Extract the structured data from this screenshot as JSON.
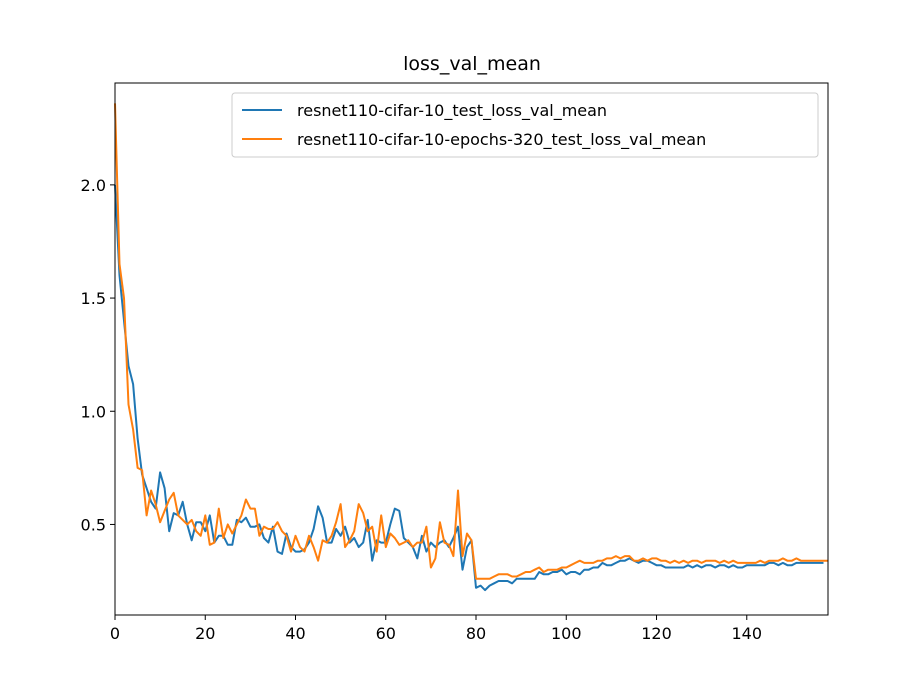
{
  "chart_data": {
    "type": "line",
    "title": "loss_val_mean",
    "xlabel": "",
    "ylabel": "",
    "xlim": [
      0,
      158
    ],
    "ylim": [
      0.1,
      2.45
    ],
    "x_ticks": [
      0,
      20,
      40,
      60,
      80,
      100,
      120,
      140
    ],
    "y_ticks": [
      0.5,
      1.0,
      1.5,
      2.0
    ],
    "x_tick_labels": [
      "0",
      "20",
      "40",
      "60",
      "80",
      "100",
      "120",
      "140"
    ],
    "y_tick_labels": [
      "0.5",
      "1.0",
      "1.5",
      "2.0"
    ],
    "grid": false,
    "legend_position": "upper-right",
    "series": [
      {
        "name": "resnet110-cifar-10_test_loss_val_mean",
        "color": "#1f77b4",
        "y": [
          2.0,
          1.6,
          1.4,
          1.2,
          1.12,
          0.88,
          0.72,
          0.66,
          0.6,
          0.57,
          0.73,
          0.66,
          0.47,
          0.55,
          0.54,
          0.6,
          0.5,
          0.43,
          0.51,
          0.51,
          0.47,
          0.54,
          0.42,
          0.45,
          0.45,
          0.41,
          0.41,
          0.52,
          0.51,
          0.53,
          0.49,
          0.49,
          0.5,
          0.44,
          0.42,
          0.49,
          0.38,
          0.37,
          0.46,
          0.4,
          0.38,
          0.38,
          0.39,
          0.42,
          0.48,
          0.58,
          0.53,
          0.42,
          0.42,
          0.48,
          0.45,
          0.49,
          0.42,
          0.44,
          0.4,
          0.42,
          0.52,
          0.34,
          0.43,
          0.42,
          0.42,
          0.5,
          0.57,
          0.56,
          0.44,
          0.42,
          0.4,
          0.35,
          0.45,
          0.38,
          0.42,
          0.4,
          0.42,
          0.43,
          0.4,
          0.44,
          0.49,
          0.3,
          0.4,
          0.43,
          0.22,
          0.23,
          0.21,
          0.23,
          0.24,
          0.25,
          0.25,
          0.25,
          0.24,
          0.26,
          0.26,
          0.26,
          0.26,
          0.26,
          0.29,
          0.28,
          0.28,
          0.29,
          0.29,
          0.3,
          0.28,
          0.29,
          0.29,
          0.28,
          0.3,
          0.3,
          0.31,
          0.31,
          0.33,
          0.32,
          0.32,
          0.33,
          0.34,
          0.34,
          0.35,
          0.34,
          0.33,
          0.34,
          0.34,
          0.33,
          0.32,
          0.32,
          0.31,
          0.31,
          0.31,
          0.31,
          0.31,
          0.32,
          0.31,
          0.32,
          0.31,
          0.32,
          0.32,
          0.31,
          0.32,
          0.32,
          0.31,
          0.32,
          0.31,
          0.31,
          0.32,
          0.32,
          0.32,
          0.32,
          0.32,
          0.33,
          0.33,
          0.32,
          0.33,
          0.32,
          0.32,
          0.33,
          0.33,
          0.33,
          0.33,
          0.33,
          0.33,
          0.33
        ],
        "x_start": 0
      },
      {
        "name": "resnet110-cifar-10-epochs-320_test_loss_val_mean",
        "color": "#ff7f0e",
        "y": [
          2.36,
          1.65,
          1.5,
          1.03,
          0.92,
          0.75,
          0.74,
          0.54,
          0.65,
          0.59,
          0.51,
          0.56,
          0.61,
          0.64,
          0.54,
          0.52,
          0.5,
          0.52,
          0.47,
          0.45,
          0.54,
          0.41,
          0.42,
          0.57,
          0.44,
          0.5,
          0.46,
          0.5,
          0.54,
          0.61,
          0.57,
          0.57,
          0.45,
          0.49,
          0.48,
          0.48,
          0.51,
          0.47,
          0.45,
          0.38,
          0.45,
          0.4,
          0.38,
          0.45,
          0.4,
          0.34,
          0.43,
          0.42,
          0.45,
          0.51,
          0.59,
          0.4,
          0.43,
          0.47,
          0.59,
          0.55,
          0.47,
          0.49,
          0.38,
          0.54,
          0.4,
          0.46,
          0.44,
          0.41,
          0.42,
          0.43,
          0.4,
          0.42,
          0.42,
          0.49,
          0.31,
          0.35,
          0.51,
          0.42,
          0.41,
          0.36,
          0.65,
          0.36,
          0.46,
          0.43,
          0.26,
          0.26,
          0.26,
          0.26,
          0.27,
          0.28,
          0.28,
          0.28,
          0.27,
          0.27,
          0.28,
          0.29,
          0.29,
          0.3,
          0.31,
          0.29,
          0.3,
          0.3,
          0.3,
          0.31,
          0.31,
          0.32,
          0.33,
          0.34,
          0.33,
          0.33,
          0.33,
          0.34,
          0.34,
          0.35,
          0.35,
          0.36,
          0.35,
          0.36,
          0.36,
          0.34,
          0.34,
          0.35,
          0.34,
          0.35,
          0.35,
          0.34,
          0.34,
          0.33,
          0.34,
          0.33,
          0.34,
          0.33,
          0.34,
          0.34,
          0.33,
          0.34,
          0.34,
          0.34,
          0.33,
          0.34,
          0.33,
          0.34,
          0.33,
          0.33,
          0.33,
          0.33,
          0.33,
          0.34,
          0.33,
          0.34,
          0.34,
          0.34,
          0.35,
          0.34,
          0.34,
          0.35,
          0.34,
          0.34,
          0.34,
          0.34,
          0.34,
          0.34,
          0.34
        ],
        "x_start": 0
      }
    ]
  }
}
